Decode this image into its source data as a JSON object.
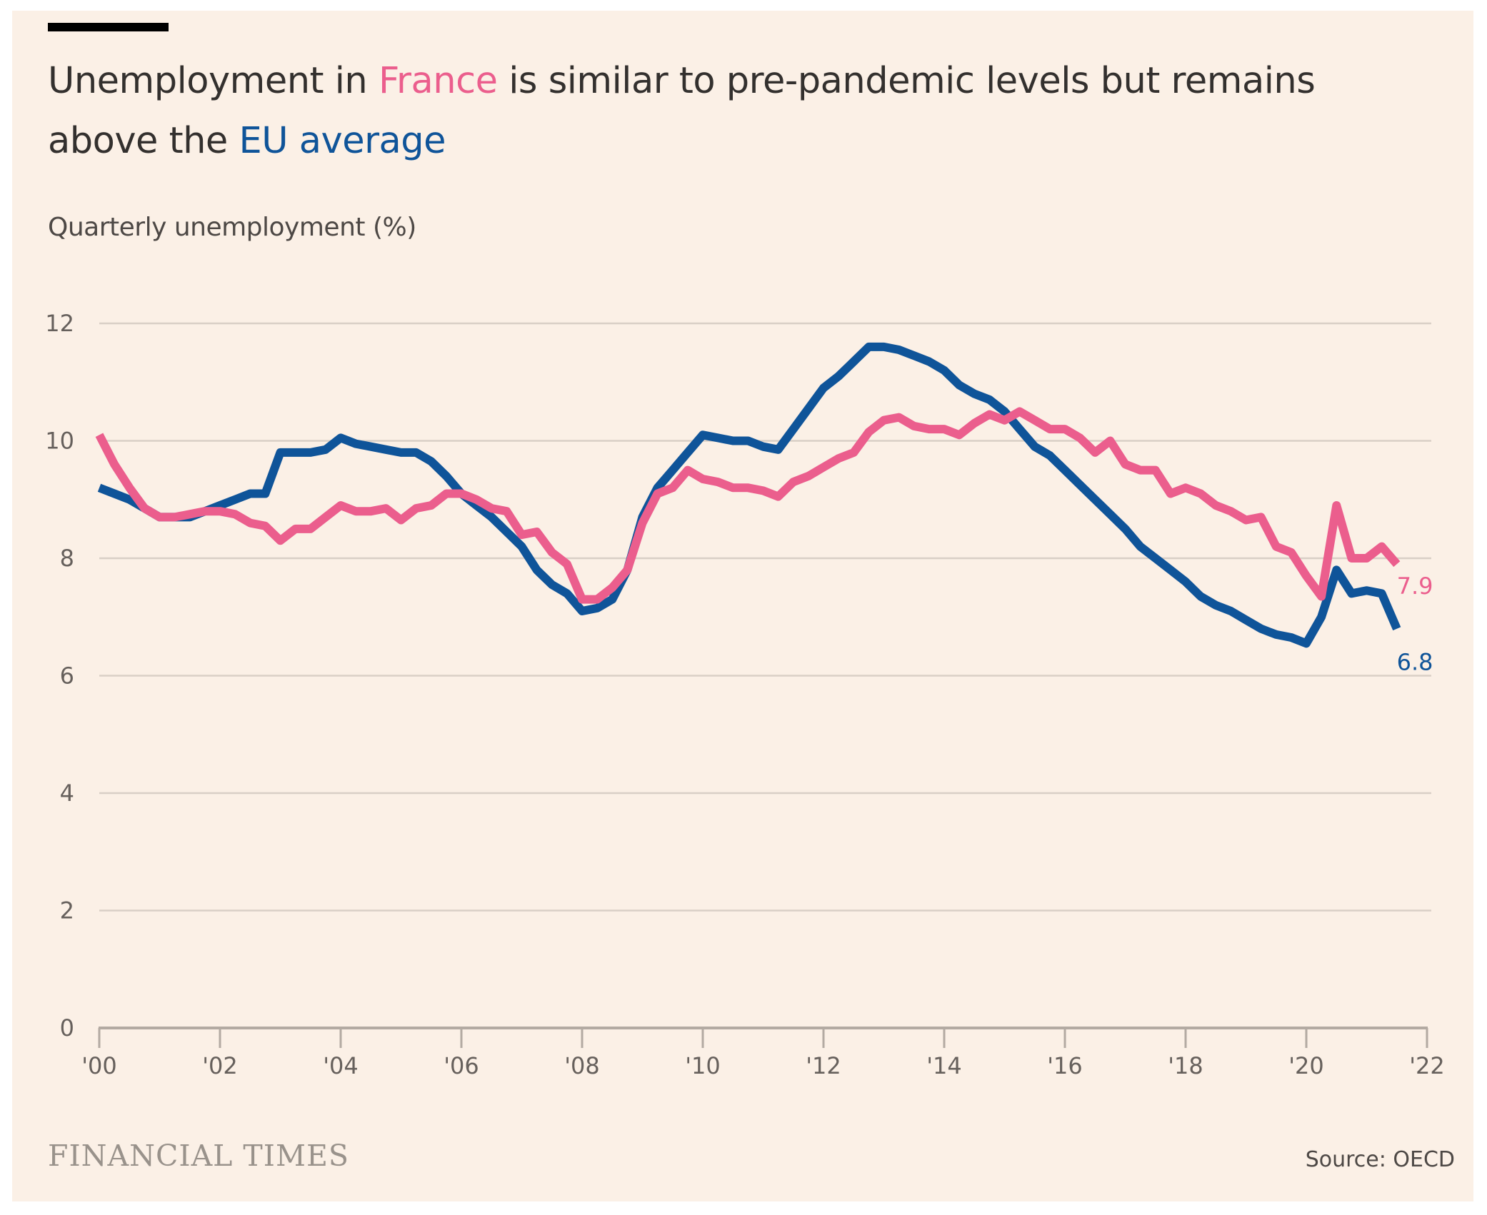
{
  "header": {
    "title_parts": [
      "Unemployment in ",
      "France",
      " is similar to pre-pandemic levels but remains above the ",
      "EU average"
    ],
    "subtitle": "Quarterly unemployment (%)"
  },
  "footer": {
    "logo": "FINANCIAL TIMES",
    "source": "Source: OECD"
  },
  "colors": {
    "france": "#eb5e8d",
    "eu": "#0f5499",
    "background": "#fbf0e6",
    "grid": "#d9cfc6",
    "axis": "#b3aaa2"
  },
  "chart_data": {
    "type": "line",
    "title": "Unemployment in France is similar to pre-pandemic levels but remains above the EU average",
    "ylabel": "Quarterly unemployment (%)",
    "xlabel": "",
    "xlim": [
      2000,
      2022
    ],
    "ylim": [
      0,
      12
    ],
    "yticks": [
      0,
      2,
      4,
      6,
      8,
      10,
      12
    ],
    "xticks": [
      2000,
      2002,
      2004,
      2006,
      2008,
      2010,
      2012,
      2014,
      2016,
      2018,
      2020,
      2022
    ],
    "xtick_labels": [
      "'00",
      "'02",
      "'04",
      "'06",
      "'08",
      "'10",
      "'12",
      "'14",
      "'16",
      "'18",
      "'20",
      "'22"
    ],
    "grid": true,
    "legend": "inline title coloring",
    "series": [
      {
        "name": "France",
        "color": "#eb5e8d",
        "end_label": "7.9",
        "x": [
          2000.0,
          2000.25,
          2000.5,
          2000.75,
          2001.0,
          2001.25,
          2001.5,
          2001.75,
          2002.0,
          2002.25,
          2002.5,
          2002.75,
          2003.0,
          2003.25,
          2003.5,
          2003.75,
          2004.0,
          2004.25,
          2004.5,
          2004.75,
          2005.0,
          2005.25,
          2005.5,
          2005.75,
          2006.0,
          2006.25,
          2006.5,
          2006.75,
          2007.0,
          2007.25,
          2007.5,
          2007.75,
          2008.0,
          2008.25,
          2008.5,
          2008.75,
          2009.0,
          2009.25,
          2009.5,
          2009.75,
          2010.0,
          2010.25,
          2010.5,
          2010.75,
          2011.0,
          2011.25,
          2011.5,
          2011.75,
          2012.0,
          2012.25,
          2012.5,
          2012.75,
          2013.0,
          2013.25,
          2013.5,
          2013.75,
          2014.0,
          2014.25,
          2014.5,
          2014.75,
          2015.0,
          2015.25,
          2015.5,
          2015.75,
          2016.0,
          2016.25,
          2016.5,
          2016.75,
          2017.0,
          2017.25,
          2017.5,
          2017.75,
          2018.0,
          2018.25,
          2018.5,
          2018.75,
          2019.0,
          2019.25,
          2019.5,
          2019.75,
          2020.0,
          2020.25,
          2020.5,
          2020.75,
          2021.0,
          2021.25,
          2021.5
        ],
        "values": [
          10.1,
          9.6,
          9.2,
          8.85,
          8.7,
          8.7,
          8.75,
          8.8,
          8.8,
          8.75,
          8.6,
          8.55,
          8.3,
          8.5,
          8.5,
          8.7,
          8.9,
          8.8,
          8.8,
          8.85,
          8.65,
          8.85,
          8.9,
          9.1,
          9.1,
          9.0,
          8.85,
          8.8,
          8.4,
          8.45,
          8.1,
          7.9,
          7.3,
          7.3,
          7.5,
          7.8,
          8.6,
          9.1,
          9.2,
          9.5,
          9.35,
          9.3,
          9.2,
          9.2,
          9.15,
          9.05,
          9.3,
          9.4,
          9.55,
          9.7,
          9.8,
          10.15,
          10.35,
          10.4,
          10.25,
          10.2,
          10.2,
          10.1,
          10.3,
          10.45,
          10.35,
          10.5,
          10.35,
          10.2,
          10.2,
          10.05,
          9.8,
          10.0,
          9.6,
          9.5,
          9.5,
          9.1,
          9.2,
          9.1,
          8.9,
          8.8,
          8.65,
          8.7,
          8.2,
          8.1,
          7.7,
          7.35,
          8.9,
          8.0,
          8.0,
          8.2,
          7.9
        ]
      },
      {
        "name": "EU average",
        "color": "#0f5499",
        "end_label": "6.8",
        "x": [
          2000.0,
          2000.25,
          2000.5,
          2000.75,
          2001.0,
          2001.25,
          2001.5,
          2001.75,
          2002.0,
          2002.25,
          2002.5,
          2002.75,
          2003.0,
          2003.25,
          2003.5,
          2003.75,
          2004.0,
          2004.25,
          2004.5,
          2004.75,
          2005.0,
          2005.25,
          2005.5,
          2005.75,
          2006.0,
          2006.25,
          2006.5,
          2006.75,
          2007.0,
          2007.25,
          2007.5,
          2007.75,
          2008.0,
          2008.25,
          2008.5,
          2008.75,
          2009.0,
          2009.25,
          2009.5,
          2009.75,
          2010.0,
          2010.25,
          2010.5,
          2010.75,
          2011.0,
          2011.25,
          2011.5,
          2011.75,
          2012.0,
          2012.25,
          2012.5,
          2012.75,
          2013.0,
          2013.25,
          2013.5,
          2013.75,
          2014.0,
          2014.25,
          2014.5,
          2014.75,
          2015.0,
          2015.25,
          2015.5,
          2015.75,
          2016.0,
          2016.25,
          2016.5,
          2016.75,
          2017.0,
          2017.25,
          2017.5,
          2017.75,
          2018.0,
          2018.25,
          2018.5,
          2018.75,
          2019.0,
          2019.25,
          2019.5,
          2019.75,
          2020.0,
          2020.25,
          2020.5,
          2020.75,
          2021.0,
          2021.25,
          2021.5
        ],
        "values": [
          9.2,
          9.1,
          9.0,
          8.85,
          8.7,
          8.7,
          8.7,
          8.8,
          8.9,
          9.0,
          9.1,
          9.1,
          9.8,
          9.8,
          9.8,
          9.85,
          10.05,
          9.95,
          9.9,
          9.85,
          9.8,
          9.8,
          9.65,
          9.4,
          9.1,
          8.9,
          8.7,
          8.45,
          8.2,
          7.8,
          7.55,
          7.4,
          7.1,
          7.15,
          7.3,
          7.8,
          8.7,
          9.2,
          9.5,
          9.8,
          10.1,
          10.05,
          10.0,
          10.0,
          9.9,
          9.85,
          10.2,
          10.55,
          10.9,
          11.1,
          11.35,
          11.6,
          11.6,
          11.55,
          11.45,
          11.35,
          11.2,
          10.95,
          10.8,
          10.7,
          10.5,
          10.2,
          9.9,
          9.75,
          9.5,
          9.25,
          9.0,
          8.75,
          8.5,
          8.2,
          8.0,
          7.8,
          7.6,
          7.35,
          7.2,
          7.1,
          6.95,
          6.8,
          6.7,
          6.65,
          6.55,
          7.0,
          7.8,
          7.4,
          7.45,
          7.4,
          6.8
        ]
      }
    ]
  }
}
